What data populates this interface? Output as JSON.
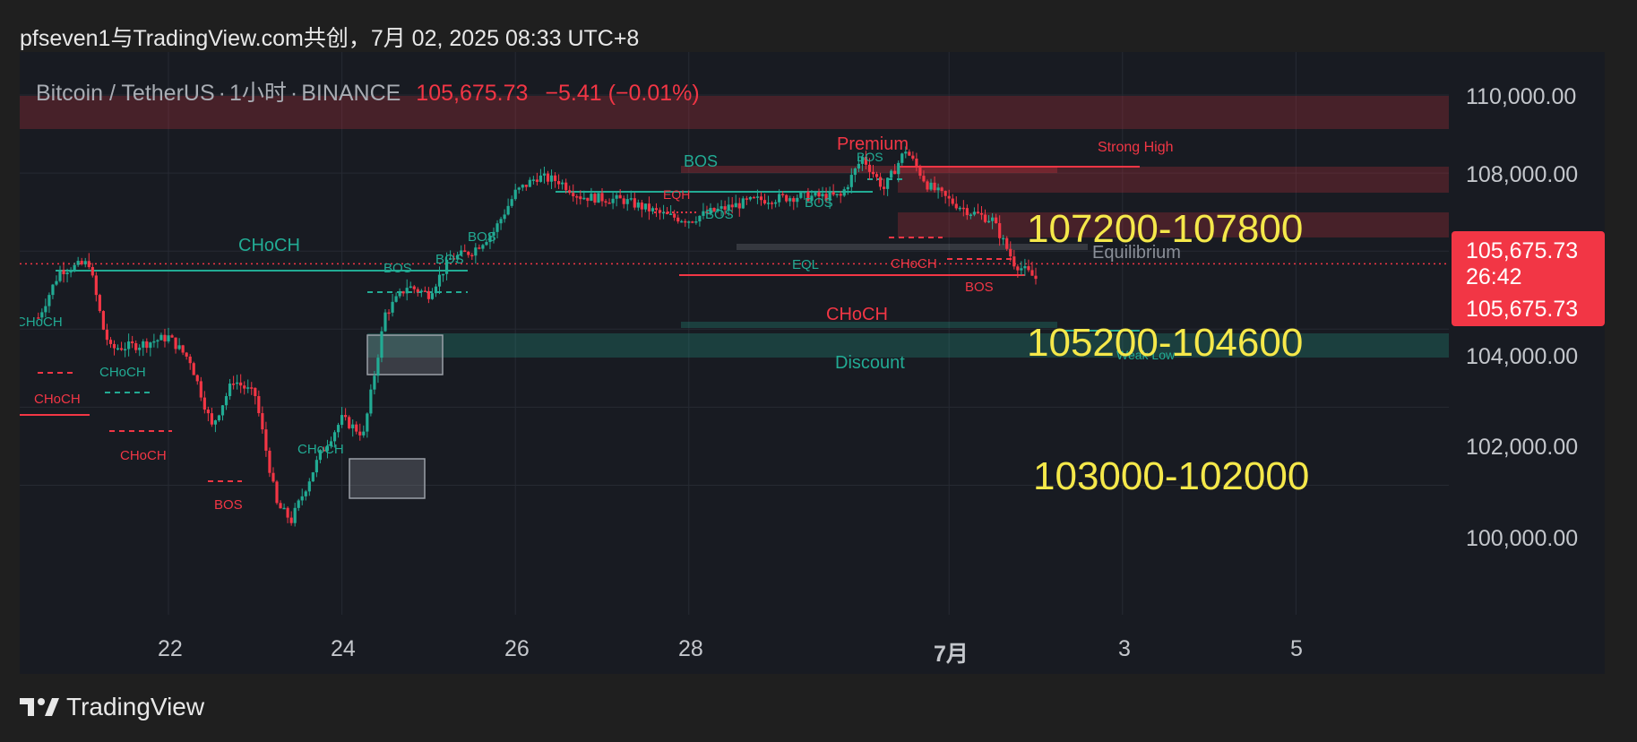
{
  "header": {
    "text": "pfseven1与TradingView.com共创，7月 02, 2025 08:33 UTC+8"
  },
  "legend": {
    "pair": "Bitcoin / TetherUS",
    "interval": "1小时",
    "exchange": "BINANCE",
    "sep": "·",
    "last": "105,675.73",
    "change": "−5.41 (−0.01%)"
  },
  "price_box": {
    "price": "105,675.73",
    "countdown": "26:42",
    "price2": "105,675.73"
  },
  "footer": {
    "brand": "TradingView"
  },
  "zones": {
    "upper": "107200-107800",
    "mid": "105200-104600",
    "lower": "103000-102000"
  },
  "colors": {
    "up": "#22ab94",
    "down": "#f23645",
    "bg": "#181b22",
    "zone_text": "#f5e84a"
  },
  "smc_labels": {
    "premium": "Premium",
    "strong_high": "Strong High",
    "equilibrium": "Equilibrium",
    "discount": "Discount",
    "bos": "BOS",
    "choch": "CHoCH",
    "eqh": "EQH",
    "eql": "EQL",
    "weak_low": "Weak Low",
    "choch_cut": "CHoCH"
  },
  "chart_data": {
    "type": "candlestick",
    "symbol": "Bitcoin / TetherUS",
    "interval": "1小时",
    "x_ticks": [
      "22",
      "24",
      "26",
      "28",
      "7月",
      "3",
      "5"
    ],
    "y_ticks": [
      "100,000.00",
      "102,000.00",
      "104,000.00",
      "108,000.00",
      "110,000.00"
    ],
    "ylim": [
      98900,
      111300
    ],
    "last_price": 105675.73,
    "series_anchors": [
      {
        "t": "06-20 12:00",
        "p": 104300
      },
      {
        "t": "06-20 18:00",
        "p": 105500
      },
      {
        "t": "06-21 02:00",
        "p": 105700
      },
      {
        "t": "06-21 06:00",
        "p": 104000
      },
      {
        "t": "06-21 08:00",
        "p": 103500
      },
      {
        "t": "06-21 16:00",
        "p": 103600
      },
      {
        "t": "06-22 00:00",
        "p": 103800
      },
      {
        "t": "06-22 06:00",
        "p": 103200
      },
      {
        "t": "06-22 12:00",
        "p": 101500
      },
      {
        "t": "06-22 18:00",
        "p": 102700
      },
      {
        "t": "06-23 00:00",
        "p": 102300
      },
      {
        "t": "06-23 06:00",
        "p": 99500
      },
      {
        "t": "06-23 10:00",
        "p": 99100
      },
      {
        "t": "06-23 18:00",
        "p": 100800
      },
      {
        "t": "06-24 00:00",
        "p": 101700
      },
      {
        "t": "06-24 06:00",
        "p": 101300
      },
      {
        "t": "06-24 12:00",
        "p": 104400
      },
      {
        "t": "06-24 18:00",
        "p": 105100
      },
      {
        "t": "06-25 00:00",
        "p": 104900
      },
      {
        "t": "06-25 06:00",
        "p": 105800
      },
      {
        "t": "06-25 12:00",
        "p": 106000
      },
      {
        "t": "06-25 18:00",
        "p": 106500
      },
      {
        "t": "06-26 00:00",
        "p": 107500
      },
      {
        "t": "06-26 06:00",
        "p": 107900
      },
      {
        "t": "06-26 12:00",
        "p": 107800
      },
      {
        "t": "06-26 18:00",
        "p": 107400
      },
      {
        "t": "06-27 06:00",
        "p": 107300
      },
      {
        "t": "06-27 18:00",
        "p": 106900
      },
      {
        "t": "06-28 00:00",
        "p": 106800
      },
      {
        "t": "06-28 06:00",
        "p": 107000
      },
      {
        "t": "06-28 18:00",
        "p": 107300
      },
      {
        "t": "06-29 06:00",
        "p": 107400
      },
      {
        "t": "06-29 18:00",
        "p": 107400
      },
      {
        "t": "06-30 00:00",
        "p": 108400
      },
      {
        "t": "06-30 06:00",
        "p": 107600
      },
      {
        "t": "06-30 12:00",
        "p": 108600
      },
      {
        "t": "06-30 18:00",
        "p": 107700
      },
      {
        "t": "07-01 00:00",
        "p": 107300
      },
      {
        "t": "07-01 06:00",
        "p": 107000
      },
      {
        "t": "07-01 12:00",
        "p": 106800
      },
      {
        "t": "07-01 18:00",
        "p": 105700
      },
      {
        "t": "07-02 00:00",
        "p": 105300
      },
      {
        "t": "07-02 00:33",
        "p": 105676
      }
    ],
    "zones": [
      {
        "label": "107200-107800",
        "from": 107200,
        "to": 107800
      },
      {
        "label": "105200-104600",
        "from": 105200,
        "to": 104600
      },
      {
        "label": "103000-102000",
        "from": 103000,
        "to": 102000
      }
    ],
    "annotations": [
      "Premium",
      "Strong High",
      "Equilibrium",
      "Discount",
      "BOS",
      "CHoCH",
      "EQH",
      "EQL"
    ]
  }
}
